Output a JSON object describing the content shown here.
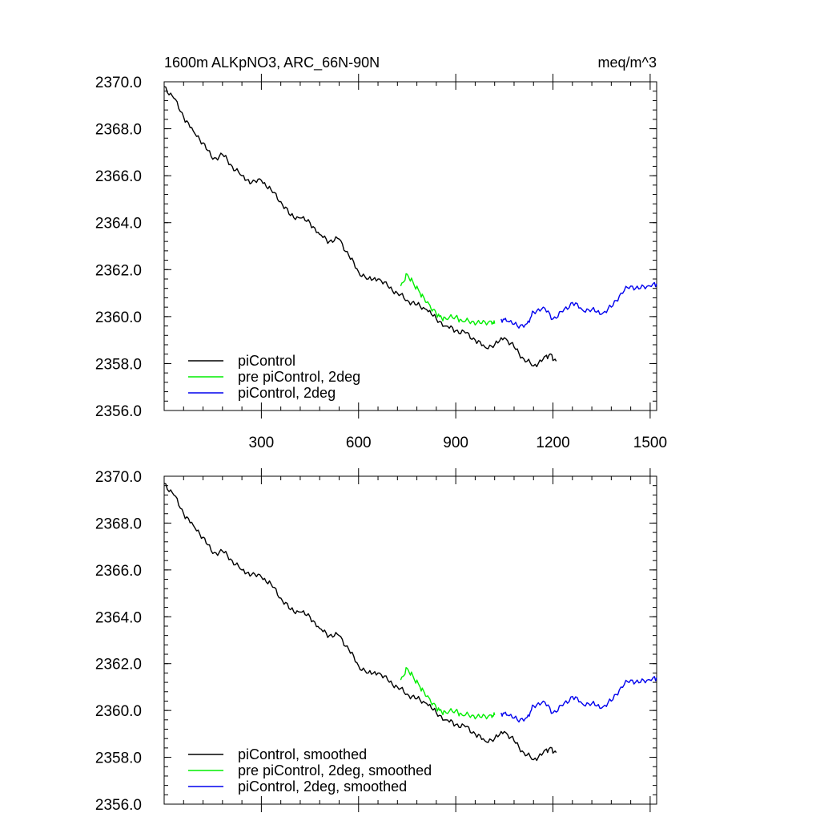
{
  "chart_data": [
    {
      "type": "line",
      "title": "1600m ALKpNO3, ARC_66N-90N",
      "units": "meq/m^3",
      "xlim": [
        0,
        1520
      ],
      "ylim": [
        2356.0,
        2370.0
      ],
      "xticks": [
        300,
        600,
        900,
        1200,
        1500
      ],
      "xtick_labels": [
        "300",
        "600",
        "900",
        "1200",
        "1500"
      ],
      "yticks": [
        2356,
        2358,
        2360,
        2362,
        2364,
        2366,
        2368,
        2370
      ],
      "ytick_labels": [
        "2356.0",
        "2358.0",
        "2360.0",
        "2362.0",
        "2364.0",
        "2366.0",
        "2368.0",
        "2370.0"
      ],
      "legend_position": "bottom-left",
      "series": [
        {
          "name": "piControl",
          "color": "#000000",
          "points": [
            [
              0,
              2369.8
            ],
            [
              30,
              2369.3
            ],
            [
              60,
              2368.5
            ],
            [
              90,
              2367.9
            ],
            [
              120,
              2367.4
            ],
            [
              150,
              2366.7
            ],
            [
              180,
              2366.9
            ],
            [
              210,
              2366.4
            ],
            [
              240,
              2366.0
            ],
            [
              270,
              2365.7
            ],
            [
              300,
              2365.8
            ],
            [
              330,
              2365.4
            ],
            [
              360,
              2364.9
            ],
            [
              390,
              2364.3
            ],
            [
              420,
              2364.2
            ],
            [
              450,
              2364.0
            ],
            [
              480,
              2363.5
            ],
            [
              510,
              2363.2
            ],
            [
              540,
              2363.3
            ],
            [
              570,
              2362.6
            ],
            [
              600,
              2361.9
            ],
            [
              630,
              2361.6
            ],
            [
              660,
              2361.6
            ],
            [
              690,
              2361.3
            ],
            [
              720,
              2361.0
            ],
            [
              750,
              2360.7
            ],
            [
              780,
              2360.5
            ],
            [
              810,
              2360.3
            ],
            [
              840,
              2359.9
            ],
            [
              870,
              2359.6
            ],
            [
              900,
              2359.4
            ],
            [
              930,
              2359.3
            ],
            [
              960,
              2359.0
            ],
            [
              990,
              2358.7
            ],
            [
              1020,
              2358.8
            ],
            [
              1050,
              2359.1
            ],
            [
              1080,
              2358.7
            ],
            [
              1110,
              2358.2
            ],
            [
              1140,
              2357.9
            ],
            [
              1170,
              2358.2
            ],
            [
              1190,
              2358.4
            ],
            [
              1210,
              2358.1
            ]
          ]
        },
        {
          "name": "pre piControl, 2deg",
          "color": "#00ee00",
          "points": [
            [
              730,
              2361.3
            ],
            [
              750,
              2361.8
            ],
            [
              770,
              2361.4
            ],
            [
              790,
              2361.0
            ],
            [
              810,
              2360.6
            ],
            [
              830,
              2360.3
            ],
            [
              850,
              2360.0
            ],
            [
              870,
              2359.9
            ],
            [
              900,
              2360.0
            ],
            [
              920,
              2359.8
            ],
            [
              950,
              2359.8
            ],
            [
              980,
              2359.7
            ],
            [
              1010,
              2359.8
            ],
            [
              1020,
              2359.7
            ]
          ]
        },
        {
          "name": "piControl, 2deg",
          "color": "#0000ee",
          "points": [
            [
              1040,
              2359.9
            ],
            [
              1060,
              2359.8
            ],
            [
              1090,
              2359.6
            ],
            [
              1120,
              2359.7
            ],
            [
              1140,
              2360.2
            ],
            [
              1170,
              2360.4
            ],
            [
              1200,
              2359.9
            ],
            [
              1230,
              2360.2
            ],
            [
              1260,
              2360.6
            ],
            [
              1290,
              2360.3
            ],
            [
              1320,
              2360.3
            ],
            [
              1350,
              2360.1
            ],
            [
              1380,
              2360.4
            ],
            [
              1410,
              2361.0
            ],
            [
              1440,
              2361.3
            ],
            [
              1470,
              2361.2
            ],
            [
              1500,
              2361.3
            ],
            [
              1520,
              2361.4
            ]
          ]
        }
      ]
    },
    {
      "type": "line",
      "title": "",
      "xlim": [
        0,
        1520
      ],
      "ylim": [
        2356.0,
        2370.0
      ],
      "xticks": [
        300,
        600,
        900,
        1200,
        1500
      ],
      "yticks": [
        2356,
        2358,
        2360,
        2362,
        2364,
        2366,
        2368,
        2370
      ],
      "ytick_labels": [
        "2356.0",
        "2358.0",
        "2360.0",
        "2362.0",
        "2364.0",
        "2366.0",
        "2368.0",
        "2370.0"
      ],
      "legend_position": "bottom-left",
      "series": [
        {
          "name": "piControl, smoothed",
          "color": "#000000",
          "points": [
            [
              0,
              2369.7
            ],
            [
              30,
              2369.2
            ],
            [
              60,
              2368.4
            ],
            [
              90,
              2367.9
            ],
            [
              120,
              2367.4
            ],
            [
              150,
              2366.7
            ],
            [
              180,
              2366.8
            ],
            [
              210,
              2366.4
            ],
            [
              240,
              2366.0
            ],
            [
              270,
              2365.8
            ],
            [
              300,
              2365.7
            ],
            [
              330,
              2365.4
            ],
            [
              360,
              2364.8
            ],
            [
              390,
              2364.3
            ],
            [
              420,
              2364.2
            ],
            [
              450,
              2364.0
            ],
            [
              480,
              2363.5
            ],
            [
              510,
              2363.2
            ],
            [
              540,
              2363.2
            ],
            [
              570,
              2362.6
            ],
            [
              600,
              2361.9
            ],
            [
              630,
              2361.6
            ],
            [
              660,
              2361.6
            ],
            [
              690,
              2361.3
            ],
            [
              720,
              2361.0
            ],
            [
              750,
              2360.7
            ],
            [
              780,
              2360.5
            ],
            [
              810,
              2360.3
            ],
            [
              840,
              2359.9
            ],
            [
              870,
              2359.6
            ],
            [
              900,
              2359.4
            ],
            [
              930,
              2359.3
            ],
            [
              960,
              2359.0
            ],
            [
              990,
              2358.7
            ],
            [
              1020,
              2358.8
            ],
            [
              1050,
              2359.1
            ],
            [
              1080,
              2358.7
            ],
            [
              1110,
              2358.2
            ],
            [
              1140,
              2357.9
            ],
            [
              1170,
              2358.2
            ],
            [
              1190,
              2358.4
            ],
            [
              1210,
              2358.2
            ]
          ]
        },
        {
          "name": "pre piControl, 2deg, smoothed",
          "color": "#00ee00",
          "points": [
            [
              730,
              2361.3
            ],
            [
              750,
              2361.8
            ],
            [
              770,
              2361.4
            ],
            [
              790,
              2361.0
            ],
            [
              810,
              2360.6
            ],
            [
              830,
              2360.3
            ],
            [
              850,
              2360.0
            ],
            [
              870,
              2359.9
            ],
            [
              900,
              2360.0
            ],
            [
              920,
              2359.8
            ],
            [
              950,
              2359.8
            ],
            [
              980,
              2359.7
            ],
            [
              1010,
              2359.8
            ],
            [
              1020,
              2359.8
            ]
          ]
        },
        {
          "name": "piControl, 2deg, smoothed",
          "color": "#0000ee",
          "points": [
            [
              1040,
              2359.9
            ],
            [
              1060,
              2359.8
            ],
            [
              1090,
              2359.6
            ],
            [
              1120,
              2359.7
            ],
            [
              1140,
              2360.2
            ],
            [
              1170,
              2360.4
            ],
            [
              1200,
              2359.9
            ],
            [
              1230,
              2360.2
            ],
            [
              1260,
              2360.6
            ],
            [
              1290,
              2360.3
            ],
            [
              1320,
              2360.3
            ],
            [
              1350,
              2360.1
            ],
            [
              1380,
              2360.4
            ],
            [
              1410,
              2361.0
            ],
            [
              1440,
              2361.3
            ],
            [
              1470,
              2361.2
            ],
            [
              1500,
              2361.3
            ],
            [
              1520,
              2361.4
            ]
          ]
        }
      ]
    }
  ]
}
